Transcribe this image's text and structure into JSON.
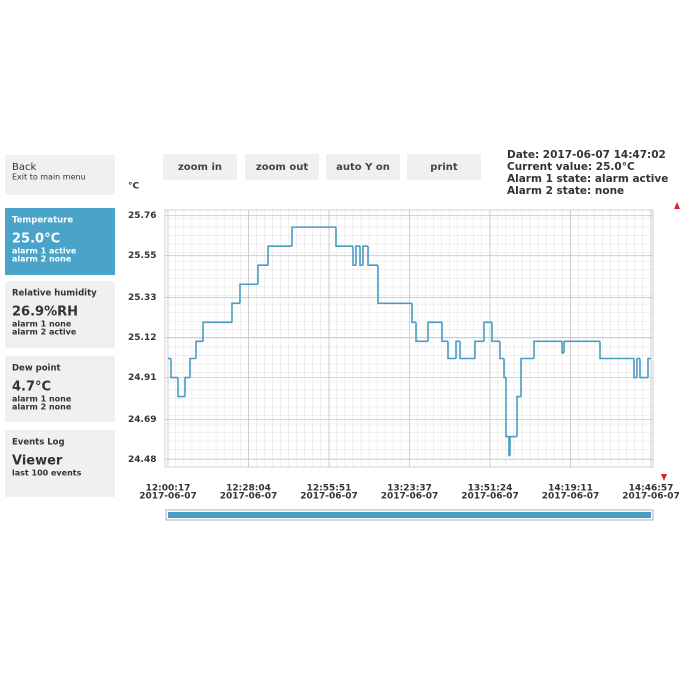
{
  "sidebar": [
    {
      "title": "Back",
      "lines": [
        "Exit to main menu"
      ]
    },
    {
      "title": "Temperature",
      "value": "25.0°C",
      "lines": [
        "alarm 1 active",
        "alarm 2 none"
      ]
    },
    {
      "title": "Relative humidity",
      "value": "26.9%RH",
      "lines": [
        "alarm 1 none",
        "alarm 2 active"
      ]
    },
    {
      "title": "Dew point",
      "value": "4.7°C",
      "lines": [
        "alarm 1 none",
        "alarm 2 none"
      ]
    },
    {
      "title": "Events Log",
      "value": "Viewer",
      "lines": [
        "last 100 events"
      ]
    }
  ],
  "buttons": [
    "zoom in",
    "zoom out",
    "auto Y on",
    "print"
  ],
  "status": [
    "Date: 2017-06-07 14:47:02",
    "Current value: 25.0°C",
    "Alarm 1 state: alarm active",
    "Alarm 2 state: none"
  ],
  "chart_data": {
    "type": "line",
    "y_unit": "°C",
    "color": "#4a9cc2",
    "grid": true,
    "ylim": [
      24.44,
      25.79
    ],
    "yticks": [
      24.48,
      24.69,
      24.91,
      25.12,
      25.33,
      25.55,
      25.76
    ],
    "xlim": [
      "12:00:17",
      "14:46:57"
    ],
    "xticks": [
      {
        "value": "12:00:17",
        "date": "2017-06-07"
      },
      {
        "value": "12:28:04",
        "date": "2017-06-07"
      },
      {
        "value": "12:55:51",
        "date": "2017-06-07"
      },
      {
        "value": "13:23:37",
        "date": "2017-06-07"
      },
      {
        "value": "13:51:24",
        "date": "2017-06-07"
      },
      {
        "value": "14:19:11",
        "date": "2017-06-07"
      },
      {
        "value": "14:46:57",
        "date": "2017-06-07"
      }
    ],
    "series": [
      {
        "name": "Temperature",
        "x": [
          "12:00:17",
          "12:01:19",
          "12:03:44",
          "12:06:09",
          "12:07:52",
          "12:09:57",
          "12:12:22",
          "12:22:22",
          "12:25:08",
          "12:31:20",
          "12:34:47",
          "12:43:04",
          "12:58:15",
          "13:04:07",
          "13:05:09",
          "13:06:32",
          "13:07:34",
          "13:09:18",
          "13:12:45",
          "13:24:29",
          "13:25:52",
          "13:30:00",
          "13:34:50",
          "13:36:54",
          "13:39:40",
          "13:41:03",
          "13:46:13",
          "13:49:19",
          "13:52:05",
          "13:54:50",
          "13:56:14",
          "13:56:55",
          "13:57:57",
          "13:58:18",
          "14:00:43",
          "14:02:06",
          "14:06:35",
          "14:16:15",
          "14:16:56",
          "14:29:21",
          "14:41:05",
          "14:42:07",
          "14:43:09",
          "14:45:55",
          "14:46:57"
        ],
        "values": [
          25.01,
          24.91,
          24.81,
          24.91,
          25.01,
          25.1,
          25.2,
          25.3,
          25.4,
          25.5,
          25.6,
          25.7,
          25.6,
          25.5,
          25.6,
          25.5,
          25.6,
          25.5,
          25.3,
          25.2,
          25.1,
          25.2,
          25.1,
          25.01,
          25.1,
          25.01,
          25.1,
          25.2,
          25.1,
          25.01,
          24.91,
          24.6,
          24.5,
          24.6,
          24.81,
          25.01,
          25.1,
          25.04,
          25.1,
          25.01,
          24.91,
          25.01,
          24.91,
          25.01,
          25.01
        ]
      }
    ]
  }
}
